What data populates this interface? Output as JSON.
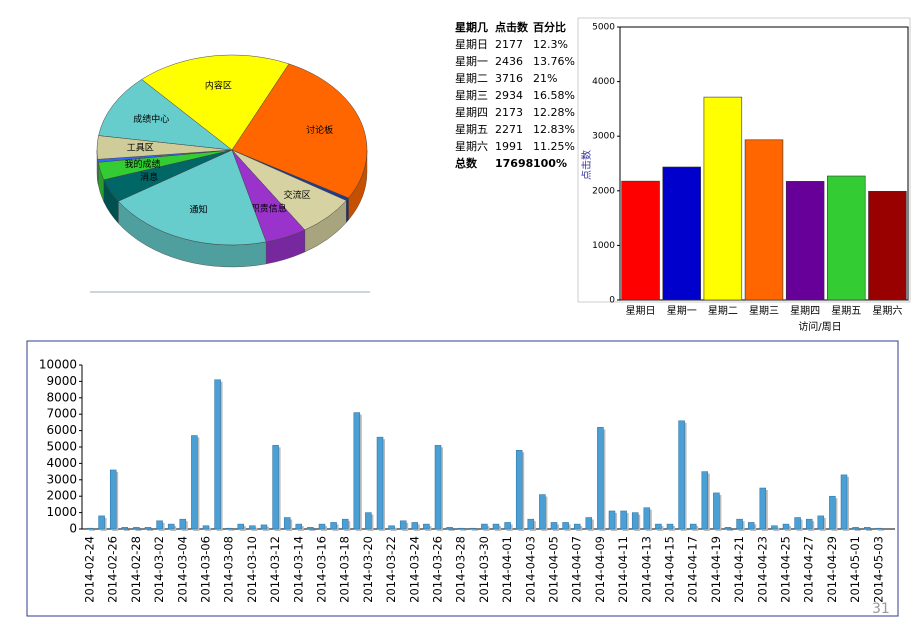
{
  "chart_data": [
    {
      "type": "pie",
      "categories": [
        "内容区",
        "讨论板",
        null,
        "交流区",
        "职责信息",
        "通知",
        "消息",
        "我的成绩",
        null,
        "工具区",
        "成绩中心"
      ],
      "values": [
        18.6,
        26.5,
        0.5,
        7,
        5,
        20,
        4,
        3,
        0.5,
        4,
        10.9
      ],
      "colors": [
        "#ffff00",
        "#ff6600",
        "#1f3a93",
        "#d6d2a2",
        "#9933cc",
        "#66cccc",
        "#006666",
        "#33cc33",
        "#3366ff",
        "#cfcc9a",
        "#66cccc"
      ]
    },
    {
      "type": "bar",
      "categories": [
        "星期日",
        "星期一",
        "星期二",
        "星期三",
        "星期四",
        "星期五",
        "星期六"
      ],
      "values": [
        2177,
        2436,
        3716,
        2934,
        2173,
        2271,
        1991
      ],
      "colors": [
        "#ff0000",
        "#0000cc",
        "#ffff00",
        "#ff6600",
        "#660099",
        "#33cc33",
        "#990000"
      ],
      "ylim": [
        0,
        5000
      ],
      "yticks": [
        0,
        1000,
        2000,
        3000,
        4000,
        5000
      ],
      "ylabel": "点击数",
      "xlabel": "访问/周日"
    },
    {
      "type": "bar",
      "color": "#4a9fd5",
      "categories": [
        "2014-02-24",
        null,
        "2014-02-26",
        null,
        "2014-02-28",
        null,
        "2014-03-02",
        null,
        "2014-03-04",
        null,
        "2014-03-06",
        null,
        "2014-03-08",
        null,
        "2014-03-10",
        null,
        "2014-03-12",
        null,
        "2014-03-14",
        null,
        "2014-03-16",
        null,
        "2014-03-18",
        null,
        "2014-03-20",
        null,
        "2014-03-22",
        null,
        "2014-03-24",
        null,
        "2014-03-26",
        null,
        "2014-03-28",
        null,
        "2014-03-30",
        null,
        "2014-04-01",
        null,
        "2014-04-03",
        null,
        "2014-04-05",
        null,
        "2014-04-07",
        null,
        "2014-04-09",
        null,
        "2014-04-11",
        null,
        "2014-04-13",
        null,
        "2014-04-15",
        null,
        "2014-04-17",
        null,
        "2014-04-19",
        null,
        "2014-04-21",
        null,
        "2014-04-23",
        null,
        "2014-04-25",
        null,
        "2014-04-27",
        null,
        "2014-04-29",
        null,
        "2014-05-01",
        null,
        "2014-05-03"
      ],
      "values": [
        50,
        800,
        3600,
        100,
        100,
        100,
        500,
        300,
        600,
        5700,
        200,
        9100,
        50,
        300,
        200,
        250,
        5100,
        700,
        300,
        100,
        300,
        400,
        600,
        7100,
        1000,
        5600,
        200,
        500,
        400,
        300,
        5100,
        100,
        50,
        50,
        300,
        300,
        400,
        4800,
        600,
        2100,
        400,
        400,
        300,
        700,
        6200,
        1100,
        1100,
        1000,
        1300,
        300,
        300,
        6600,
        300,
        3500,
        2200,
        100,
        600,
        400,
        2500,
        200,
        300,
        700,
        600,
        800,
        2000,
        3300,
        100,
        100,
        50
      ],
      "ylim": [
        0,
        10000
      ],
      "yticks": [
        0,
        1000,
        2000,
        3000,
        4000,
        5000,
        6000,
        7000,
        8000,
        9000,
        10000
      ]
    }
  ],
  "table": {
    "header": [
      "星期几",
      "点击数",
      "百分比"
    ],
    "rows": [
      [
        "星期日",
        2177,
        "12.3%"
      ],
      [
        "星期一",
        2436,
        "13.76%"
      ],
      [
        "星期二",
        3716,
        "21%"
      ],
      [
        "星期三",
        2934,
        "16.58%"
      ],
      [
        "星期四",
        2173,
        "12.28%"
      ],
      [
        "星期五",
        2271,
        "12.83%"
      ],
      [
        "星期六",
        1991,
        "11.25%"
      ]
    ],
    "total": [
      "总数",
      17698,
      "100%"
    ]
  },
  "page_number": "31"
}
